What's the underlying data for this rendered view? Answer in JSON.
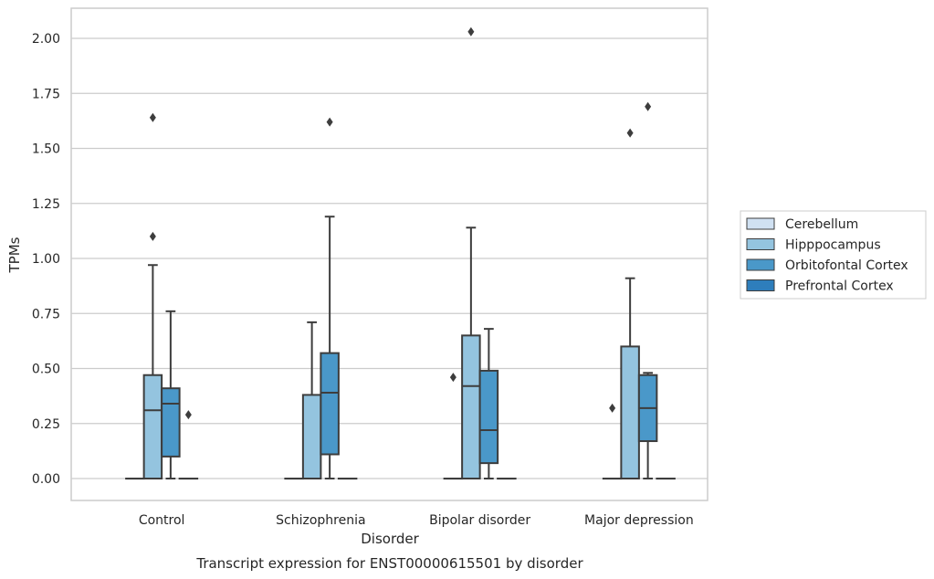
{
  "chart_data": {
    "type": "box",
    "title": "",
    "caption": "Transcript expression for ENST00000615501 by disorder",
    "xlabel": "Disorder",
    "ylabel": "TPMs",
    "ylim": [
      -0.1,
      2.13
    ],
    "yticks": [
      "0.00",
      "0.25",
      "0.50",
      "0.75",
      "1.00",
      "1.25",
      "1.50",
      "1.75",
      "2.00"
    ],
    "ytick_values": [
      0,
      0.25,
      0.5,
      0.75,
      1.0,
      1.25,
      1.5,
      1.75,
      2.0
    ],
    "grid": true,
    "legend_position": "right",
    "categories": [
      "Control",
      "Schizophrenia",
      "Bipolar disorder",
      "Major depression"
    ],
    "series": [
      {
        "name": "Cerebellum",
        "color": "#d0e1f2",
        "boxes": [
          {
            "q1": 0,
            "median": 0,
            "q3": 0,
            "whisker_low": 0,
            "whisker_high": 0,
            "outliers": []
          },
          {
            "q1": 0,
            "median": 0,
            "q3": 0,
            "whisker_low": 0,
            "whisker_high": 0,
            "outliers": []
          },
          {
            "q1": 0,
            "median": 0,
            "q3": 0,
            "whisker_low": 0,
            "whisker_high": 0,
            "outliers": [
              0.46
            ]
          },
          {
            "q1": 0,
            "median": 0,
            "q3": 0,
            "whisker_low": 0,
            "whisker_high": 0,
            "outliers": [
              0.32
            ]
          }
        ]
      },
      {
        "name": "Hipppocampus",
        "color": "#94c4df",
        "boxes": [
          {
            "q1": 0,
            "median": 0.31,
            "q3": 0.47,
            "whisker_low": 0,
            "whisker_high": 0.97,
            "outliers": [
              1.64,
              1.1
            ]
          },
          {
            "q1": 0,
            "median": 0,
            "q3": 0.38,
            "whisker_low": 0,
            "whisker_high": 0.71,
            "outliers": []
          },
          {
            "q1": 0,
            "median": 0.42,
            "q3": 0.65,
            "whisker_low": 0,
            "whisker_high": 1.14,
            "outliers": [
              2.03
            ]
          },
          {
            "q1": 0,
            "median": 0,
            "q3": 0.6,
            "whisker_low": 0,
            "whisker_high": 0.91,
            "outliers": [
              1.57
            ]
          }
        ]
      },
      {
        "name": "Orbitofontal Cortex",
        "color": "#4a98c9",
        "boxes": [
          {
            "q1": 0.1,
            "median": 0.34,
            "q3": 0.41,
            "whisker_low": 0,
            "whisker_high": 0.76,
            "outliers": []
          },
          {
            "q1": 0.11,
            "median": 0.39,
            "q3": 0.57,
            "whisker_low": 0,
            "whisker_high": 1.19,
            "outliers": [
              1.62
            ]
          },
          {
            "q1": 0.07,
            "median": 0.22,
            "q3": 0.49,
            "whisker_low": 0,
            "whisker_high": 0.68,
            "outliers": []
          },
          {
            "q1": 0.17,
            "median": 0.32,
            "q3": 0.47,
            "whisker_low": 0,
            "whisker_high": 0.48,
            "outliers": [
              1.69
            ]
          }
        ]
      },
      {
        "name": "Prefrontal Cortex",
        "color": "#2e7ebc",
        "boxes": [
          {
            "q1": 0,
            "median": 0,
            "q3": 0,
            "whisker_low": 0,
            "whisker_high": 0,
            "outliers": [
              0.29
            ]
          },
          {
            "q1": 0,
            "median": 0,
            "q3": 0,
            "whisker_low": 0,
            "whisker_high": 0,
            "outliers": []
          },
          {
            "q1": 0,
            "median": 0,
            "q3": 0,
            "whisker_low": 0,
            "whisker_high": 0,
            "outliers": []
          },
          {
            "q1": 0,
            "median": 0,
            "q3": 0,
            "whisker_low": 0,
            "whisker_high": 0,
            "outliers": []
          }
        ]
      }
    ]
  }
}
